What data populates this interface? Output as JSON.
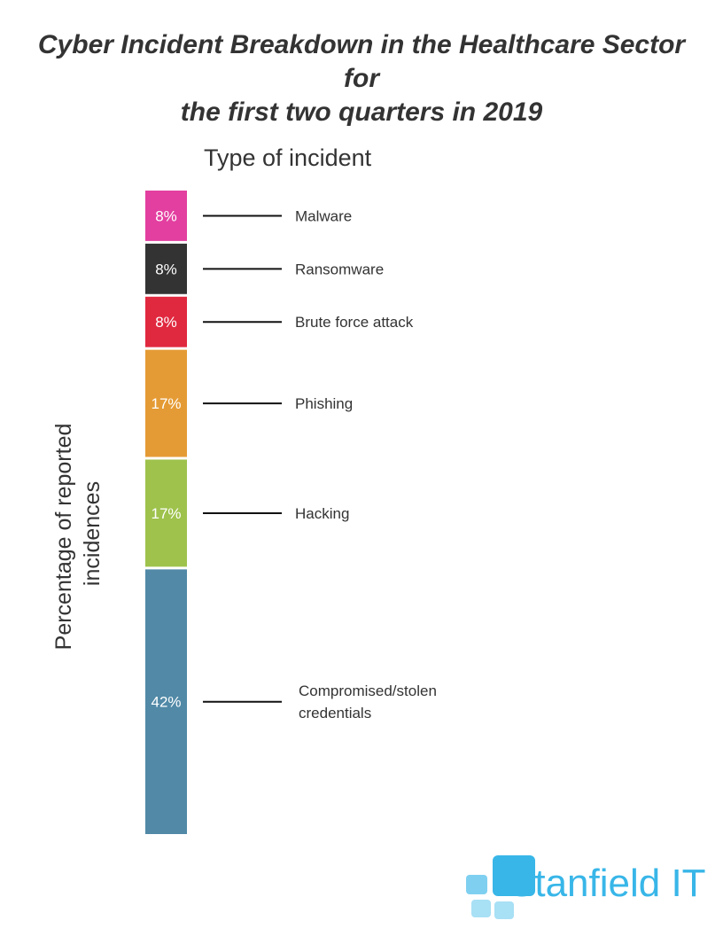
{
  "title_lines": [
    "Cyber Incident Breakdown in the Healthcare Sector for",
    "the first two quarters in 2019"
  ],
  "chart_data": {
    "type": "bar",
    "stacked": true,
    "title": "Cyber Incident Breakdown in the Healthcare Sector for the first two quarters in 2019",
    "xlabel": "Type of incident",
    "ylabel": "Percentage of reported incidences",
    "ylabel_lines": [
      "Percentage of reported",
      "incidences"
    ],
    "unit": "%",
    "segments": [
      {
        "category": "Malware",
        "label_lines": [
          "Malware"
        ],
        "value": 8,
        "value_label": "8%",
        "color": "#e33fa0"
      },
      {
        "category": "Ransomware",
        "label_lines": [
          "Ransomware"
        ],
        "value": 8,
        "value_label": "8%",
        "color": "#333333"
      },
      {
        "category": "Brute force attack",
        "label_lines": [
          "Brute force attack"
        ],
        "value": 8,
        "value_label": "8%",
        "color": "#e0283f"
      },
      {
        "category": "Phishing",
        "label_lines": [
          "Phishing"
        ],
        "value": 17,
        "value_label": "17%",
        "color": "#e59b35"
      },
      {
        "category": "Hacking",
        "label_lines": [
          "Hacking"
        ],
        "value": 17,
        "value_label": "17%",
        "color": "#9ec24c"
      },
      {
        "category": "Compromised/stolen credentials",
        "label_lines": [
          "Compromised/stolen",
          "credentials"
        ],
        "value": 42,
        "value_label": "42%",
        "color": "#5189a7"
      }
    ]
  },
  "logo": {
    "text": "Stanfield IT",
    "accent_color": "#38b6e8",
    "light_color": "#a8e0f5"
  }
}
